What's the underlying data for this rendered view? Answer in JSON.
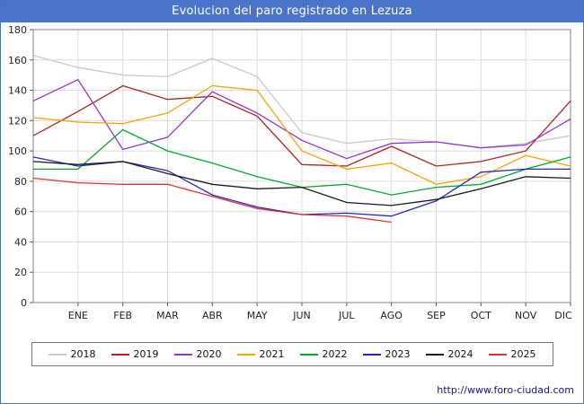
{
  "title": "Evolucion del paro registrado en Lezuza",
  "footer": {
    "url": "http://www.foro-ciudad.com"
  },
  "chart_data": {
    "type": "line",
    "title": "Evolucion del paro registrado en Lezuza",
    "xlabel": "",
    "ylabel": "",
    "ylim": [
      0,
      180
    ],
    "y_ticks": [
      0,
      20,
      40,
      60,
      80,
      100,
      120,
      140,
      160,
      180
    ],
    "grid": true,
    "legend_position": "bottom",
    "x_note": "13 points per series: value at left axis plus one per month label",
    "x_tick_labels": [
      "ENE",
      "FEB",
      "MAR",
      "ABR",
      "MAY",
      "JUN",
      "JUL",
      "AGO",
      "SEP",
      "OCT",
      "NOV",
      "DIC"
    ],
    "series": [
      {
        "name": "2018",
        "color": "#c9c9c9",
        "values": [
          163,
          155,
          150,
          149,
          161,
          149,
          112,
          105,
          108,
          106,
          102,
          105,
          110
        ]
      },
      {
        "name": "2019",
        "color": "#b22222",
        "values": [
          110,
          126,
          143,
          134,
          136,
          123,
          91,
          90,
          103,
          90,
          93,
          100,
          133
        ]
      },
      {
        "name": "2020",
        "color": "#9933cc",
        "values": [
          133,
          147,
          101,
          109,
          139,
          125,
          107,
          95,
          105,
          106,
          102,
          104,
          121
        ]
      },
      {
        "name": "2021",
        "color": "#f5a300",
        "values": [
          122,
          119,
          118,
          125,
          143,
          140,
          100,
          88,
          92,
          78,
          83,
          97,
          90
        ]
      },
      {
        "name": "2022",
        "color": "#00aa2b",
        "values": [
          88,
          88,
          114,
          100,
          92,
          83,
          76,
          78,
          71,
          76,
          78,
          88,
          96
        ]
      },
      {
        "name": "2023",
        "color": "#2228c8",
        "values": [
          96,
          90,
          93,
          87,
          71,
          63,
          58,
          59,
          57,
          67,
          86,
          88,
          88
        ]
      },
      {
        "name": "2024",
        "color": "#1a1a1a",
        "values": [
          93,
          91,
          93,
          85,
          78,
          75,
          76,
          66,
          64,
          68,
          75,
          83,
          82
        ]
      },
      {
        "name": "2025",
        "color": "#e03131",
        "values": [
          82,
          79,
          78,
          78,
          70,
          62,
          58,
          57,
          53,
          null,
          null,
          null,
          null
        ]
      }
    ]
  }
}
